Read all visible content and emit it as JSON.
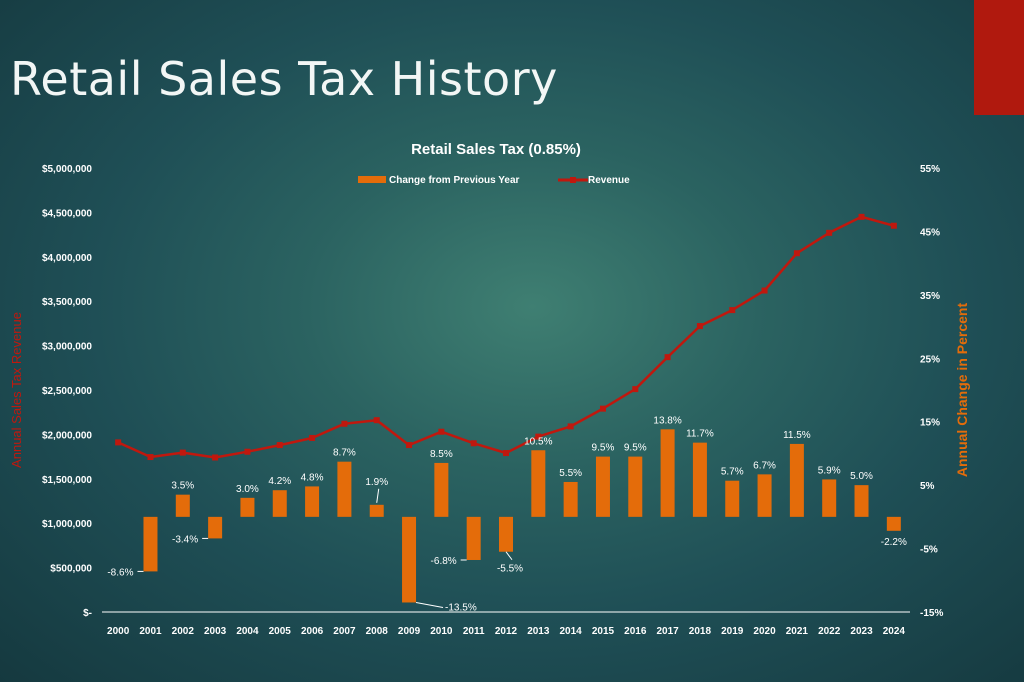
{
  "slide": {
    "title": "Retail Sales Tax History"
  },
  "chart_data": {
    "type": "bar",
    "title": "Retail Sales Tax (0.85%)",
    "ylabel": "Annual Sales Tax Revenue",
    "y2label": "Annual Change in Percent",
    "categories": [
      "2000",
      "2001",
      "2002",
      "2003",
      "2004",
      "2005",
      "2006",
      "2007",
      "2008",
      "2009",
      "2010",
      "2011",
      "2012",
      "2013",
      "2014",
      "2015",
      "2016",
      "2017",
      "2018",
      "2019",
      "2020",
      "2021",
      "2022",
      "2023",
      "2024"
    ],
    "ylim": [
      0,
      5000000
    ],
    "y_ticks": [
      0,
      500000,
      1000000,
      1500000,
      2000000,
      2500000,
      3000000,
      3500000,
      4000000,
      4500000,
      5000000
    ],
    "y_tick_labels": [
      "$-",
      "$500,000",
      "$1,000,000",
      "$1,500,000",
      "$2,000,000",
      "$2,500,000",
      "$3,000,000",
      "$3,500,000",
      "$4,000,000",
      "$4,500,000",
      "$5,000,000"
    ],
    "y2lim": [
      -15,
      55
    ],
    "y2_ticks": [
      -15,
      -5,
      5,
      15,
      25,
      35,
      45,
      55
    ],
    "y2_tick_labels": [
      "-15%",
      "-5%",
      "5%",
      "15%",
      "25%",
      "35%",
      "45%",
      "55%"
    ],
    "legend_position": "top",
    "grid": false,
    "series": [
      {
        "name": "Change from Previous Year",
        "type": "bar",
        "axis": "right",
        "color": "#e46c0a",
        "values": [
          null,
          -8.6,
          3.5,
          -3.4,
          3.0,
          4.2,
          4.8,
          8.7,
          1.9,
          -13.5,
          8.5,
          -6.8,
          -5.5,
          10.5,
          5.5,
          9.5,
          9.5,
          13.8,
          11.7,
          5.7,
          6.7,
          11.5,
          5.9,
          5.0,
          -2.2
        ],
        "labels": [
          "",
          "-8.6%",
          "3.5%",
          "-3.4%",
          "3.0%",
          "4.2%",
          "4.8%",
          "8.7%",
          "1.9%",
          "-13.5%",
          "8.5%",
          "-6.8%",
          "-5.5%",
          "10.5%",
          "5.5%",
          "9.5%",
          "9.5%",
          "13.8%",
          "11.7%",
          "5.7%",
          "6.7%",
          "11.5%",
          "5.9%",
          "5.0%",
          "-2.2%"
        ]
      },
      {
        "name": "Revenue",
        "type": "line",
        "axis": "left",
        "color": "#c0180e",
        "values": [
          1910000,
          1745000,
          1795000,
          1740000,
          1805000,
          1880000,
          1960000,
          2120000,
          2160000,
          1880000,
          2030000,
          1900000,
          1790000,
          1975000,
          2090000,
          2290000,
          2510000,
          2870000,
          3220000,
          3400000,
          3620000,
          4040000,
          4270000,
          4450000,
          4350000
        ]
      }
    ]
  }
}
